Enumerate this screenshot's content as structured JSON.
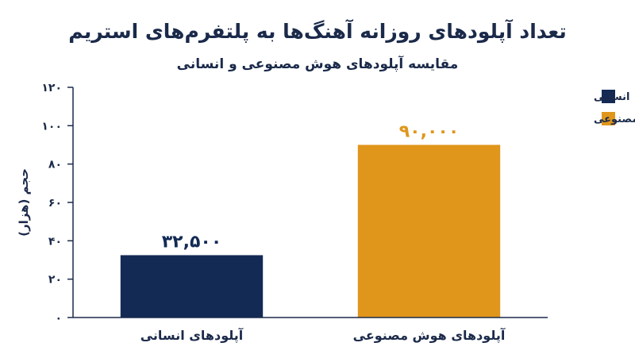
{
  "chart_data": {
    "type": "bar",
    "title": "تعداد آپلودهای روزانه آهنگ‌ها به پلتفرم‌های استریم",
    "subtitle": "مقایسه آپلودهای هوش مصنوعی و انسانی",
    "ylabel": "حجم (هزار)",
    "xlabel": "",
    "categories": [
      "آپلودهای انسانی",
      "آپلودهای هوش مصنوعی"
    ],
    "values": [
      32.5,
      90
    ],
    "data_labels": [
      "۳۲,۵۰۰",
      "۹۰,۰۰۰"
    ],
    "ylim": [
      0,
      120
    ],
    "yticks": [
      0,
      20,
      40,
      60,
      80,
      100,
      120
    ],
    "ytick_labels": [
      "۰",
      "۲۰",
      "۴۰",
      "۶۰",
      "۸۰",
      "۱۰۰",
      "۱۲۰"
    ],
    "bar_colors": [
      "#132a55",
      "#e0961b"
    ],
    "label_colors": [
      "#132a55",
      "#e0961b"
    ],
    "grid": false,
    "legend": {
      "placement": "top-right",
      "entries": [
        {
          "label": "انسانی",
          "color": "#132a55"
        },
        {
          "label": "هوش مصنوعی",
          "color": "#e0961b"
        }
      ]
    }
  }
}
